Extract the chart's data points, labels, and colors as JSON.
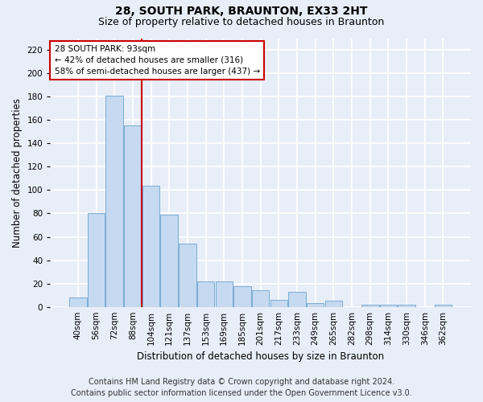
{
  "title": "28, SOUTH PARK, BRAUNTON, EX33 2HT",
  "subtitle": "Size of property relative to detached houses in Braunton",
  "xlabel": "Distribution of detached houses by size in Braunton",
  "ylabel": "Number of detached properties",
  "bar_labels": [
    "40sqm",
    "56sqm",
    "72sqm",
    "88sqm",
    "104sqm",
    "121sqm",
    "137sqm",
    "153sqm",
    "169sqm",
    "185sqm",
    "201sqm",
    "217sqm",
    "233sqm",
    "249sqm",
    "265sqm",
    "282sqm",
    "298sqm",
    "314sqm",
    "330sqm",
    "346sqm",
    "362sqm"
  ],
  "bar_values": [
    8,
    80,
    181,
    155,
    104,
    79,
    54,
    22,
    22,
    18,
    14,
    6,
    13,
    3,
    5,
    0,
    2,
    2,
    2,
    0,
    2
  ],
  "bar_color": "#c5d9f0",
  "bar_edge_color": "#7aadd4",
  "property_line_label": "28 SOUTH PARK: 93sqm",
  "annotation_line1": "← 42% of detached houses are smaller (316)",
  "annotation_line2": "58% of semi-detached houses are larger (437) →",
  "annotation_box_facecolor": "#ffffff",
  "annotation_box_edgecolor": "#cc0000",
  "vline_color": "#cc0000",
  "vline_x": 3.5,
  "ylim": [
    0,
    230
  ],
  "yticks": [
    0,
    20,
    40,
    60,
    80,
    100,
    120,
    140,
    160,
    180,
    200,
    220
  ],
  "footer_line1": "Contains HM Land Registry data © Crown copyright and database right 2024.",
  "footer_line2": "Contains public sector information licensed under the Open Government Licence v3.0.",
  "background_color": "#e8eef8",
  "plot_bg_color": "#e8eef8",
  "grid_color": "#ffffff",
  "title_fontsize": 10,
  "subtitle_fontsize": 9,
  "axis_label_fontsize": 8.5,
  "tick_fontsize": 7.5,
  "footer_fontsize": 7,
  "annotation_fontsize": 7.5
}
